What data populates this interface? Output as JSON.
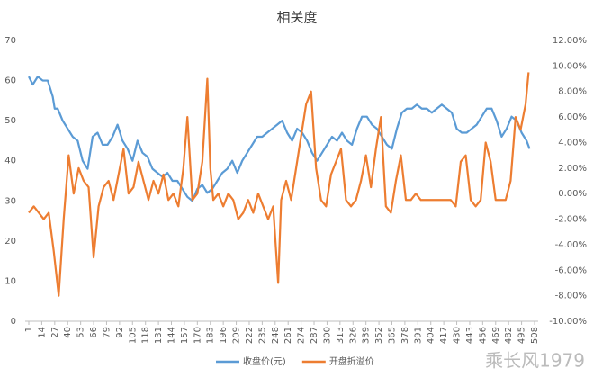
{
  "chart_data": {
    "type": "line",
    "title": "相关度",
    "watermark": "乘长风1979",
    "xlim": [
      1,
      508
    ],
    "xticks": [
      1,
      14,
      27,
      40,
      53,
      66,
      79,
      92,
      105,
      118,
      131,
      144,
      157,
      170,
      183,
      196,
      209,
      222,
      235,
      248,
      261,
      274,
      287,
      300,
      313,
      326,
      339,
      352,
      365,
      378,
      391,
      404,
      417,
      430,
      443,
      456,
      469,
      482,
      495,
      508
    ],
    "ylim": [
      0,
      70
    ],
    "yticks": [
      0,
      10,
      20,
      30,
      40,
      50,
      60,
      70
    ],
    "y2lim": [
      -10,
      12
    ],
    "y2ticks": [
      {
        "value": 12,
        "label": "12.00%"
      },
      {
        "value": 10,
        "label": "10.00%"
      },
      {
        "value": 8,
        "label": "8.00%"
      },
      {
        "value": 6,
        "label": "6.00%"
      },
      {
        "value": 4,
        "label": "4.00%"
      },
      {
        "value": 2,
        "label": "2.00%"
      },
      {
        "value": 0,
        "label": "0.00%"
      },
      {
        "value": -2,
        "label": "-2.00%"
      },
      {
        "value": -4,
        "label": "-4.00%"
      },
      {
        "value": -6,
        "label": "-6.00%"
      },
      {
        "value": -8,
        "label": "-8.00%"
      },
      {
        "value": -10,
        "label": "-10.00%"
      }
    ],
    "legend": "bottom",
    "series": [
      {
        "name": "收盘价(元)",
        "color": "#5b9bd5",
        "axis": "y",
        "x": [
          1,
          5,
          10,
          15,
          20,
          25,
          27,
          30,
          35,
          40,
          45,
          50,
          55,
          60,
          65,
          70,
          75,
          80,
          85,
          90,
          95,
          100,
          105,
          110,
          115,
          120,
          125,
          130,
          135,
          140,
          145,
          150,
          155,
          160,
          165,
          170,
          175,
          180,
          185,
          190,
          195,
          200,
          205,
          210,
          215,
          220,
          225,
          230,
          235,
          240,
          245,
          250,
          255,
          260,
          265,
          270,
          275,
          280,
          285,
          290,
          295,
          300,
          305,
          310,
          315,
          320,
          325,
          330,
          335,
          340,
          345,
          350,
          355,
          360,
          365,
          370,
          375,
          380,
          385,
          390,
          395,
          400,
          405,
          410,
          415,
          420,
          425,
          430,
          435,
          440,
          445,
          450,
          455,
          460,
          465,
          470,
          475,
          480,
          485,
          490,
          495,
          500,
          503
        ],
        "values": [
          61,
          59,
          61,
          60,
          60,
          56,
          53,
          53,
          50,
          48,
          46,
          45,
          40,
          38,
          46,
          47,
          44,
          44,
          46,
          49,
          45,
          43,
          40,
          45,
          42,
          41,
          38,
          37,
          36,
          37,
          35,
          35,
          33,
          31,
          30,
          33,
          34,
          32,
          33,
          35,
          37,
          38,
          40,
          37,
          40,
          42,
          44,
          46,
          46,
          47,
          48,
          49,
          50,
          47,
          45,
          48,
          47,
          45,
          42,
          40,
          42,
          44,
          46,
          45,
          47,
          45,
          44,
          48,
          51,
          51,
          49,
          48,
          46,
          44,
          43,
          48,
          52,
          53,
          53,
          54,
          53,
          53,
          52,
          53,
          54,
          53,
          52,
          48,
          47,
          47,
          48,
          49,
          51,
          53,
          53,
          50,
          46,
          48,
          51,
          50,
          47,
          45,
          43
        ]
      },
      {
        "name": "开盘折溢价",
        "color": "#ed7d31",
        "axis": "y2",
        "x": [
          1,
          6,
          11,
          16,
          21,
          26,
          31,
          36,
          41,
          46,
          51,
          56,
          61,
          66,
          71,
          76,
          81,
          86,
          91,
          96,
          101,
          106,
          111,
          116,
          121,
          126,
          131,
          136,
          141,
          146,
          151,
          156,
          160,
          165,
          170,
          175,
          180,
          183,
          186,
          191,
          196,
          201,
          206,
          211,
          216,
          221,
          226,
          231,
          236,
          241,
          246,
          251,
          254,
          259,
          264,
          269,
          274,
          279,
          284,
          289,
          294,
          299,
          304,
          309,
          314,
          319,
          324,
          329,
          334,
          339,
          344,
          349,
          354,
          359,
          364,
          369,
          374,
          379,
          384,
          389,
          394,
          399,
          404,
          409,
          414,
          419,
          424,
          429,
          434,
          439,
          444,
          449,
          454,
          459,
          464,
          469,
          474,
          479,
          484,
          489,
          494,
          499,
          502
        ],
        "values": [
          -1.5,
          -1,
          -1.5,
          -2,
          -1.5,
          -4.5,
          -8,
          -2,
          3,
          0,
          2,
          1,
          0.5,
          -5,
          -1,
          0.5,
          1,
          -0.5,
          1.5,
          3.5,
          0,
          0.5,
          2.5,
          1,
          -0.5,
          1,
          0,
          1.5,
          -0.5,
          0,
          -1,
          2,
          6,
          -0.5,
          0,
          2.5,
          9,
          2,
          -0.5,
          0,
          -1,
          0,
          -0.5,
          -2,
          -1.5,
          -0.5,
          -1.5,
          0,
          -1,
          -2,
          -1,
          -7,
          -0.5,
          1,
          -0.5,
          2,
          4.5,
          7,
          8,
          2,
          -0.5,
          -1,
          1.5,
          2.5,
          3.5,
          -0.5,
          -1,
          -0.5,
          1,
          3,
          0.5,
          3.5,
          6,
          -1,
          -1.5,
          1,
          3,
          -0.5,
          -0.5,
          0,
          -0.5,
          -0.5,
          -0.5,
          -0.5,
          -0.5,
          -0.5,
          -0.5,
          -1,
          2.5,
          3,
          -0.5,
          -1,
          -0.5,
          4,
          2.5,
          -0.5,
          -0.5,
          -0.5,
          1,
          6,
          5,
          7,
          9.5
        ]
      }
    ]
  }
}
